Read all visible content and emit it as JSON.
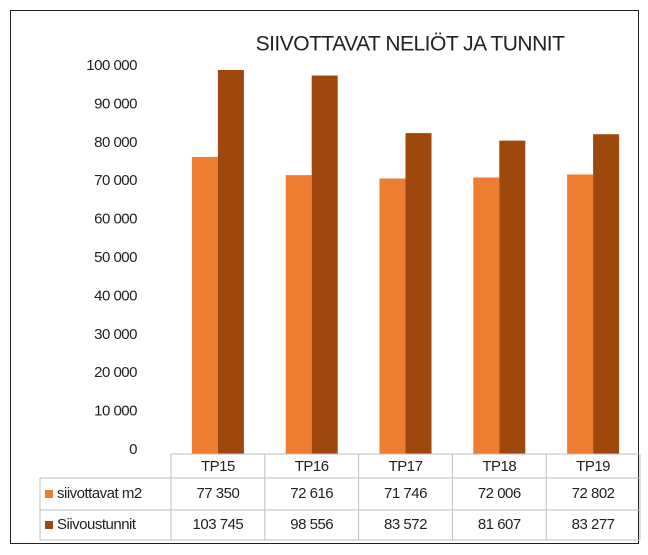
{
  "chart_data": {
    "type": "bar",
    "title": "SIIVOTTAVAT  NELIÖT JA TUNNIT",
    "categories": [
      "TP15",
      "TP16",
      "TP17",
      "TP18",
      "TP19"
    ],
    "series": [
      {
        "name": "siivottavat m2",
        "color": "#ed7d31",
        "values": [
          77350,
          72616,
          71746,
          72006,
          72802
        ],
        "value_labels": [
          "77 350",
          "72 616",
          "71 746",
          "72 006",
          "72 802"
        ]
      },
      {
        "name": "Siivoustunnit",
        "color": "#9e480e",
        "values": [
          103745,
          98556,
          83572,
          81607,
          83277
        ],
        "value_labels": [
          "103 745",
          "98 556",
          "83 572",
          "81 607",
          "83 277"
        ]
      }
    ],
    "ylim": [
      0,
      100000
    ],
    "yticks": [
      0,
      {
        "value": 10000,
        "label": "10 000"
      },
      {
        "value": 20000,
        "label": "20 000"
      },
      {
        "value": 30000,
        "label": "30 000"
      },
      {
        "value": 40000,
        "label": "40 000"
      },
      {
        "value": 50000,
        "label": "50 000"
      },
      {
        "value": 60000,
        "label": "60 000"
      },
      {
        "value": 70000,
        "label": "70 000"
      },
      {
        "value": 80000,
        "label": "80 000"
      },
      {
        "value": 90000,
        "label": "90 000"
      },
      {
        "value": 100000,
        "label": "100 000"
      }
    ],
    "grid": false,
    "data_table": true
  }
}
